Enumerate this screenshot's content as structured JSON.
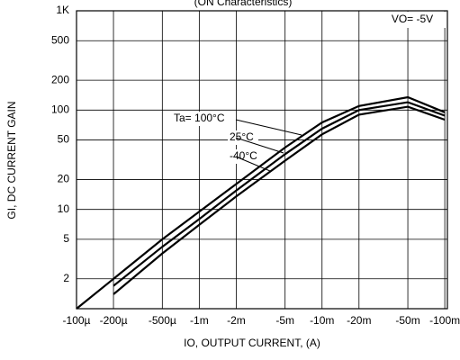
{
  "chart_data": {
    "type": "line",
    "title": "(ON Characteristics)",
    "x_label": "IO, OUTPUT CURRENT, (A)",
    "y_label": "GI, DC CURRENT GAIN",
    "annotations": [
      "VO= -5V",
      "Ta= 100°C",
      "25°C",
      "-40°C"
    ],
    "log_x": true,
    "log_y": true,
    "grid": true,
    "xlim": [
      -0.0001,
      -0.105
    ],
    "ylim": [
      1,
      1000
    ],
    "xticks": [
      {
        "value": -0.0001,
        "label": "-100µ"
      },
      {
        "value": -0.0002,
        "label": "-200µ"
      },
      {
        "value": -0.0005,
        "label": "-500µ"
      },
      {
        "value": -0.001,
        "label": "-1m"
      },
      {
        "value": -0.002,
        "label": "-2m"
      },
      {
        "value": -0.005,
        "label": "-5m"
      },
      {
        "value": -0.01,
        "label": "-10m"
      },
      {
        "value": -0.02,
        "label": "-20m"
      },
      {
        "value": -0.05,
        "label": "-50m"
      },
      {
        "value": -0.1,
        "label": "-100m"
      }
    ],
    "yticks": [
      {
        "value": 1000,
        "label": "1K"
      },
      500,
      200,
      100,
      50,
      20,
      10,
      5,
      2
    ],
    "x": [
      -0.0001,
      -0.0002,
      -0.0005,
      -0.001,
      -0.002,
      -0.005,
      -0.01,
      -0.02,
      -0.05,
      -0.1
    ],
    "series": [
      {
        "name": "100°C",
        "color": "#000000",
        "values": [
          1.0,
          2.0,
          5.0,
          9.5,
          18,
          42,
          75,
          110,
          135,
          95
        ]
      },
      {
        "name": "25°C",
        "color": "#000000",
        "values": [
          null,
          1.7,
          4.2,
          8,
          15.5,
          36,
          65,
          100,
          120,
          88
        ]
      },
      {
        "name": "-40°C",
        "color": "#000000",
        "values": [
          null,
          1.4,
          3.6,
          7,
          13.5,
          31,
          57,
          90,
          108,
          80
        ]
      }
    ]
  }
}
